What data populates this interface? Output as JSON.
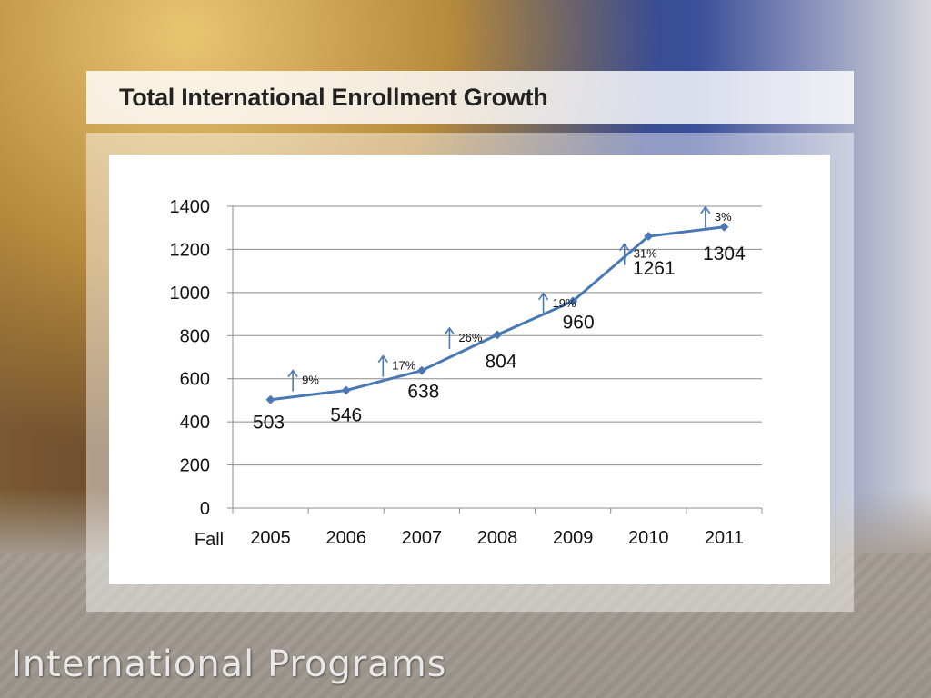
{
  "slide": {
    "title": "Total International Enrollment Growth",
    "brand": "International Programs"
  },
  "chart_data": {
    "type": "line",
    "title": "Total International Enrollment Growth",
    "xlabel": "Fall",
    "ylabel": "",
    "categories": [
      "2005",
      "2006",
      "2007",
      "2008",
      "2009",
      "2010",
      "2011"
    ],
    "series": [
      {
        "values": [
          503,
          546,
          638,
          804,
          960,
          1261,
          1304
        ],
        "color": "#4a78b5"
      }
    ],
    "growth_annotations": [
      "9%",
      "17%",
      "26%",
      "19%",
      "31%",
      "3%"
    ],
    "ylim": [
      0,
      1400
    ],
    "yticks": [
      0,
      200,
      400,
      600,
      800,
      1000,
      1200,
      1400
    ],
    "grid": true,
    "legend": "none",
    "marker": "diamond",
    "arrow_icon": "up-arrow-icon"
  }
}
